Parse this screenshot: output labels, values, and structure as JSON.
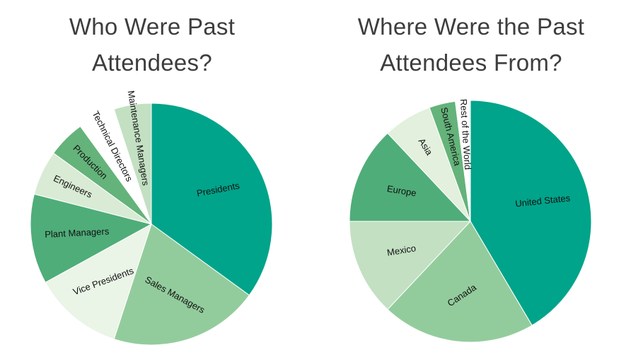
{
  "charts": [
    {
      "id": "left",
      "title_lines": [
        "Who Were Past",
        "Attendees?"
      ]
    },
    {
      "id": "right",
      "title_lines": [
        "Where Were the Past",
        "Attendees From?"
      ]
    }
  ],
  "chart_data": [
    {
      "type": "pie",
      "title": "Who Were Past Attendees?",
      "start_angle_deg": 0,
      "direction": "clockwise",
      "slices": [
        {
          "label": "Presidents",
          "value": 35.0,
          "color": "#00a48a"
        },
        {
          "label": "Sales Managers",
          "value": 20.0,
          "color": "#93cc9c"
        },
        {
          "label": "Vice Presidents",
          "value": 12.0,
          "color": "#eaf4e7"
        },
        {
          "label": "Plant Managers",
          "value": 12.0,
          "color": "#4fad79"
        },
        {
          "label": "Engineers",
          "value": 6.0,
          "color": "#d9ebd4"
        },
        {
          "label": "Production",
          "value": 5.0,
          "color": "#64b37a"
        },
        {
          "label": "Technical Directors",
          "value": 5.0,
          "color": "#ffffff"
        },
        {
          "label": "Maintenance Managers",
          "value": 5.0,
          "color": "#c3e0c3"
        }
      ]
    },
    {
      "type": "pie",
      "title": "Where Were the Past Attendees From?",
      "start_angle_deg": 0,
      "direction": "clockwise",
      "slices": [
        {
          "label": "United States",
          "value": 41.5,
          "color": "#00a48a"
        },
        {
          "label": "Canada",
          "value": 20.5,
          "color": "#93cc9c"
        },
        {
          "label": "Mexico",
          "value": 13.0,
          "color": "#c3e0c3"
        },
        {
          "label": "Europe",
          "value": 13.0,
          "color": "#4fad79"
        },
        {
          "label": "Asia",
          "value": 6.5,
          "color": "#e2f0dd"
        },
        {
          "label": "South America",
          "value": 3.5,
          "color": "#64b37a"
        },
        {
          "label": "Rest of the World",
          "value": 2.0,
          "color": "#ffffff"
        }
      ]
    }
  ]
}
